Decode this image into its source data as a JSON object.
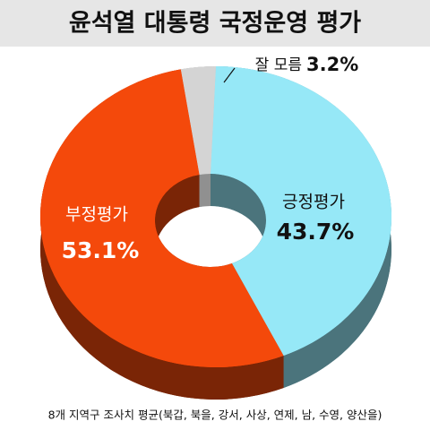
{
  "chart_data": {
    "type": "donut",
    "title": "윤석열 대통령 국정운영 평가",
    "categories": [
      "긍정평가",
      "부정평가",
      "잘 모름"
    ],
    "values": [
      43.7,
      53.1,
      3.2
    ],
    "value_labels": [
      "43.7%",
      "53.1%",
      "3.2%"
    ],
    "colors": [
      "#96e8f7",
      "#f4490b",
      "#d4d4d4"
    ],
    "note": "8개 지역구 조사치 평균(북갑, 북을, 강서, 사상, 연제, 남, 수영, 양산을)"
  }
}
